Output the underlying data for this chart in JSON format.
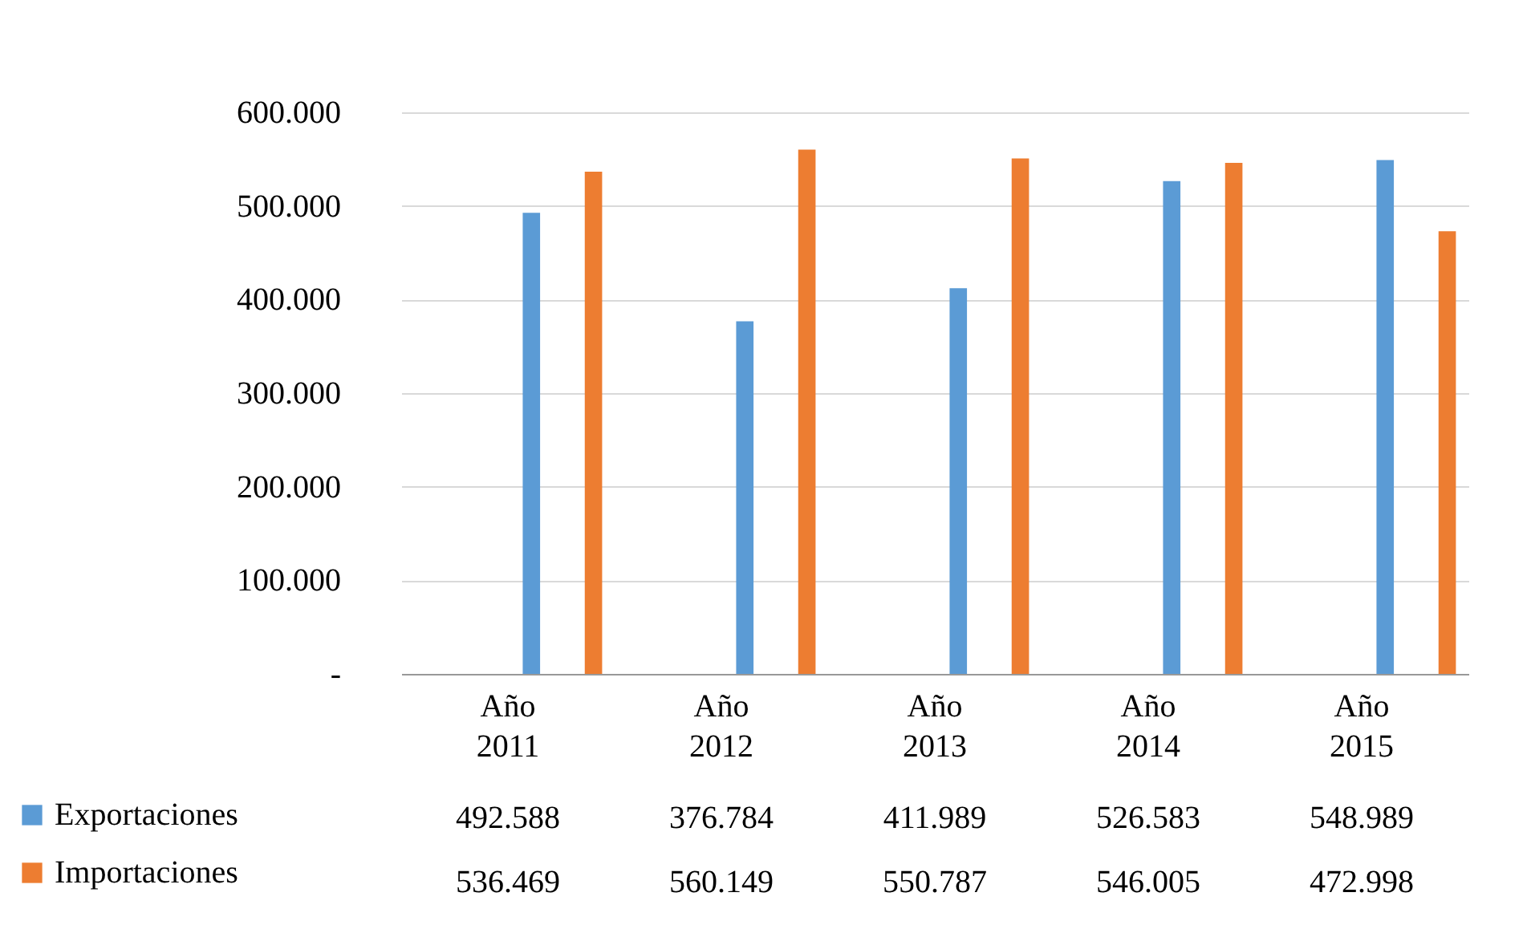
{
  "chart_data": {
    "type": "bar",
    "categories": [
      "Año 2011",
      "Año 2012",
      "Año 2013",
      "Año 2014",
      "Año 2015"
    ],
    "series": [
      {
        "name": "Exportaciones",
        "color": "#5b9bd5",
        "values": [
          492588,
          376784,
          411989,
          526583,
          548989
        ],
        "value_labels": [
          "492.588",
          "376.784",
          "411.989",
          "526.583",
          "548.989"
        ]
      },
      {
        "name": "Importaciones",
        "color": "#ed7d31",
        "values": [
          536469,
          560149,
          550787,
          546005,
          472998
        ],
        "value_labels": [
          "536.469",
          "560.149",
          "550.787",
          "546.005",
          "472.998"
        ]
      }
    ],
    "ylim": [
      0,
      600000
    ],
    "yticks": [
      {
        "value": 0,
        "label": "-"
      },
      {
        "value": 100000,
        "label": "100.000"
      },
      {
        "value": 200000,
        "label": "200.000"
      },
      {
        "value": 300000,
        "label": "300.000"
      },
      {
        "value": 400000,
        "label": "400.000"
      },
      {
        "value": 500000,
        "label": "500.000"
      },
      {
        "value": 600000,
        "label": "600.000"
      }
    ],
    "grid": "y",
    "legend": "bottom"
  }
}
